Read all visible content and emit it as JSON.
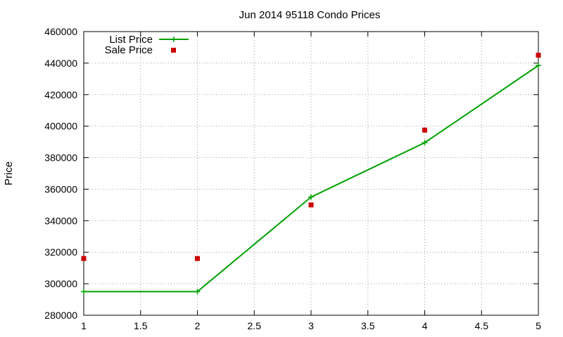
{
  "chart_data": {
    "type": "line",
    "title": "Jun 2014 95118 Condo Prices",
    "xlabel": "",
    "ylabel": "Price",
    "xlim": [
      1,
      5
    ],
    "ylim": [
      280000,
      460000
    ],
    "x_ticks": [
      "1",
      "1.5",
      "2",
      "2.5",
      "3",
      "3.5",
      "4",
      "4.5",
      "5"
    ],
    "y_ticks": [
      "280000",
      "300000",
      "320000",
      "340000",
      "360000",
      "380000",
      "400000",
      "420000",
      "440000",
      "460000"
    ],
    "grid": true,
    "legend_position": "top-left",
    "series": [
      {
        "name": "List Price",
        "style": "lines+points",
        "color": "#00a000",
        "x": [
          1,
          2,
          3,
          4,
          5
        ],
        "values": [
          295000,
          295000,
          355000,
          389500,
          438500
        ]
      },
      {
        "name": "Sale Price",
        "style": "points",
        "color": "#cc0000",
        "x": [
          1,
          2,
          3,
          4,
          5
        ],
        "values": [
          316000,
          316000,
          350000,
          397500,
          445000
        ]
      }
    ]
  }
}
